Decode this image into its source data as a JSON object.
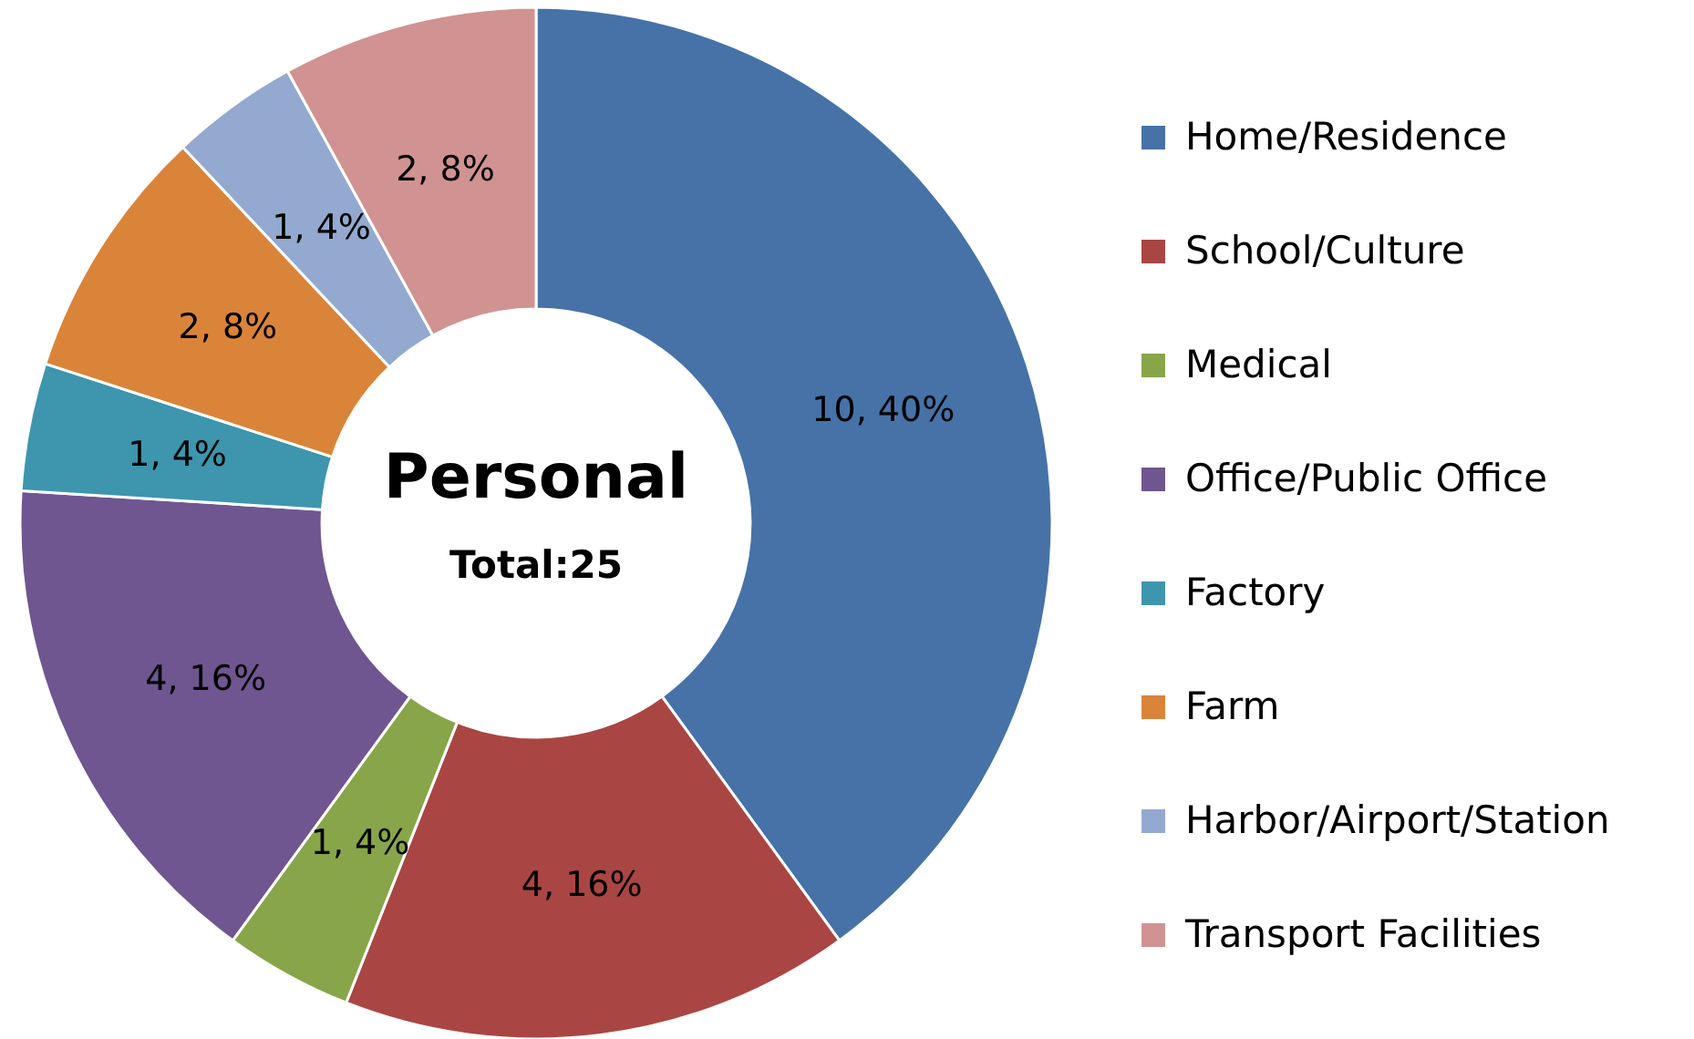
{
  "chart_data": {
    "type": "donut",
    "title": "Personal",
    "subtitle": "Total:25",
    "categories": [
      "Home/Residence",
      "School/Culture",
      "Medical",
      "Office/Public Office",
      "Factory",
      "Farm",
      "Harbor/Airport/Station",
      "Transport Facilities"
    ],
    "values": [
      10,
      4,
      1,
      4,
      1,
      2,
      1,
      2
    ],
    "colors": [
      "#4672a8",
      "#a94643",
      "#88a54a",
      "#6f5690",
      "#3d96ae",
      "#da843a",
      "#93a9cf",
      "#d09392"
    ],
    "value_labels": [
      "10, 40%",
      "4, 16%",
      "1, 4%",
      "4, 16%",
      "1, 4%",
      "2, 8%",
      "1, 4%",
      "2, 8%"
    ],
    "legend": "right"
  }
}
